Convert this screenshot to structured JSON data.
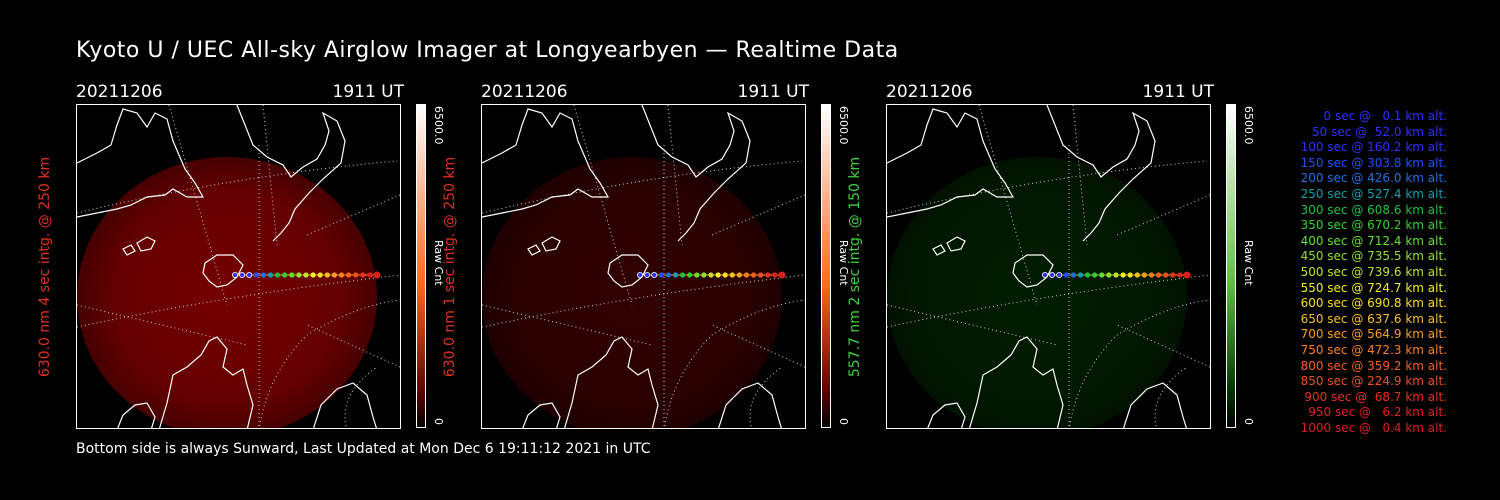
{
  "title": "Kyoto U / UEC All-sky Airglow Imager at Longyearbyen — Realtime Data",
  "panels": [
    {
      "date": "20211206",
      "time": "1911 UT",
      "ylabel": "630.0 nm 4 sec intg. @ 250 km",
      "label_color": "#e03020",
      "glow_color": "#8a0000",
      "glow_opacity": 0.85,
      "colorbar": {
        "max": "6500.0",
        "unit": "Raw Cnt",
        "min": "0",
        "top_color": "#ffffff",
        "mid_color": "#ff6a20",
        "bottom_color": "#550000"
      }
    },
    {
      "date": "20211206",
      "time": "1911 UT",
      "ylabel": "630.0 nm 1 sec intg. @ 250 km",
      "label_color": "#e03020",
      "glow_color": "#5a0000",
      "glow_opacity": 0.55,
      "colorbar": {
        "max": "6500.0",
        "unit": "Raw Cnt",
        "min": "0",
        "top_color": "#ffffff",
        "mid_color": "#ff6a20",
        "bottom_color": "#550000"
      }
    },
    {
      "date": "20211206",
      "time": "1911 UT",
      "ylabel": "557.7 nm 2 sec intg. @ 150 km",
      "label_color": "#40d040",
      "glow_color": "#003a00",
      "glow_opacity": 0.5,
      "colorbar": {
        "max": "6500.0",
        "unit": "Raw Cnt",
        "min": "0",
        "top_color": "#ffffff",
        "mid_color": "#60c040",
        "bottom_color": "#003000"
      }
    }
  ],
  "legend": [
    {
      "text": "0 sec @   0.1 km alt.",
      "color": "#3030ff"
    },
    {
      "text": "50 sec @  52.0 km alt.",
      "color": "#3030ff"
    },
    {
      "text": "100 sec @ 160.2 km alt.",
      "color": "#3030ff"
    },
    {
      "text": "150 sec @ 303.8 km alt.",
      "color": "#2050ff"
    },
    {
      "text": "200 sec @ 426.0 km alt.",
      "color": "#2070e0"
    },
    {
      "text": "250 sec @ 527.4 km alt.",
      "color": "#10a0b0"
    },
    {
      "text": "300 sec @ 608.6 km alt.",
      "color": "#20c040"
    },
    {
      "text": "350 sec @ 670.2 km alt.",
      "color": "#30d030"
    },
    {
      "text": "400 sec @ 712.4 km alt.",
      "color": "#60e030"
    },
    {
      "text": "450 sec @ 735.5 km alt.",
      "color": "#90e030"
    },
    {
      "text": "500 sec @ 739.6 km alt.",
      "color": "#c0e030"
    },
    {
      "text": "550 sec @ 724.7 km alt.",
      "color": "#f0f020"
    },
    {
      "text": "600 sec @ 690.8 km alt.",
      "color": "#f8e020"
    },
    {
      "text": "650 sec @ 637.6 km alt.",
      "color": "#f8c020"
    },
    {
      "text": "700 sec @ 564.9 km alt.",
      "color": "#f8a020"
    },
    {
      "text": "750 sec @ 472.3 km alt.",
      "color": "#f88020"
    },
    {
      "text": "800 sec @ 359.2 km alt.",
      "color": "#f86020"
    },
    {
      "text": "850 sec @ 224.9 km alt.",
      "color": "#f05020"
    },
    {
      "text": "900 sec @  68.7 km alt.",
      "color": "#e83020"
    },
    {
      "text": "950 sec @   6.2 km alt.",
      "color": "#e02020"
    },
    {
      "text": "1000 sec @   0.4 km alt.",
      "color": "#d82020"
    }
  ],
  "footer": "Bottom side is always Sunward, Last Updated at Mon Dec  6 19:11:12 2021 in UTC"
}
